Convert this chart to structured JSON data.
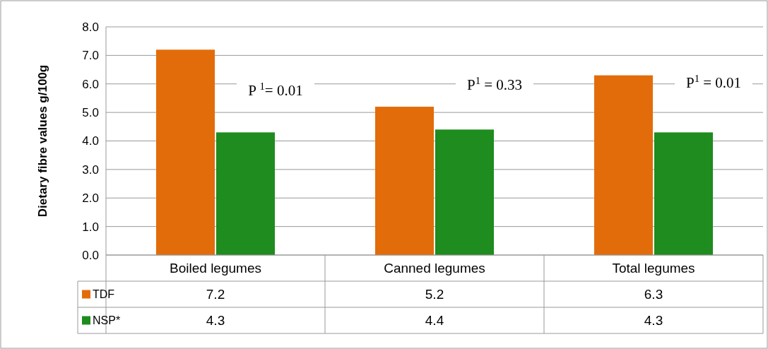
{
  "chart_data": {
    "type": "bar",
    "ylabel": "Dietary fibre values g/100g",
    "categories": [
      "Boiled legumes",
      "Canned legumes",
      "Total legumes"
    ],
    "series": [
      {
        "name": "TDF",
        "color": "#e36c0a",
        "values": [
          7.2,
          5.2,
          6.3
        ]
      },
      {
        "name": "NSP*",
        "color": "#1e8c1e",
        "values": [
          4.3,
          4.4,
          4.3
        ]
      }
    ],
    "ylim": [
      0,
      8
    ],
    "yticks": [
      {
        "value": 0,
        "label": "0.0"
      },
      {
        "value": 1,
        "label": "1.0"
      },
      {
        "value": 2,
        "label": "2.0"
      },
      {
        "value": 3,
        "label": "3.0"
      },
      {
        "value": 4,
        "label": "4.0"
      },
      {
        "value": 5,
        "label": "5.0"
      },
      {
        "value": 6,
        "label": "6.0"
      },
      {
        "value": 7,
        "label": "7.0"
      },
      {
        "value": 8,
        "label": "8.0"
      }
    ],
    "grid": "y",
    "legend": "bottom",
    "data_labels": true,
    "annotations": [
      "P $^{1}$= 0.01",
      "P$^{1}$ = 0.33",
      "P$^{1}$ = 0.01"
    ]
  }
}
